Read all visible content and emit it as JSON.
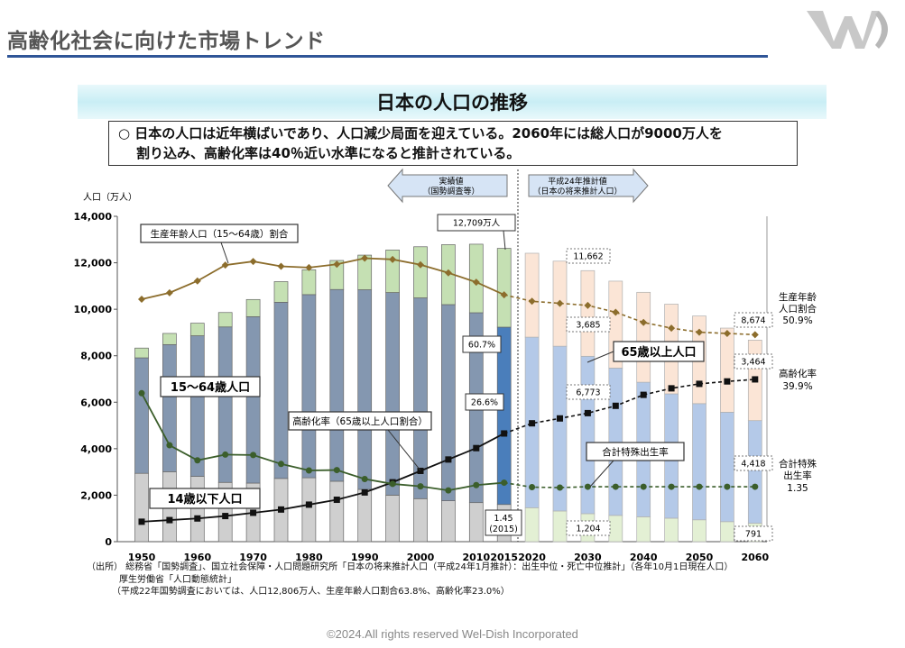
{
  "header": {
    "title": "高齢化社会に向けた市場トレンド"
  },
  "slide": {
    "title": "日本の人口の推移",
    "summary_line1": "○ 日本の人口は近年横ばいであり、人口減少局面を迎えている。2060年には総人口が9000万人を",
    "summary_line2": "割り込み、高齢化率は40％近い水準になると推計されている。"
  },
  "chart_data": {
    "type": "bar",
    "y_axis_title": "人口（万人）",
    "ylim": [
      0,
      14000
    ],
    "y_ticks": [
      "0",
      "2,000",
      "4,000",
      "6,000",
      "8,000",
      "10,000",
      "12,000",
      "14,000"
    ],
    "x_tick_labels": [
      "1950",
      "1960",
      "1970",
      "1980",
      "1990",
      "2000",
      "2010",
      "2015",
      "2020",
      "2030",
      "2040",
      "2050",
      "2060"
    ],
    "periods": {
      "actual_label_1": "実績値",
      "actual_label_2": "（国勢調査等）",
      "projected_label_1": "平成24年推計値",
      "projected_label_2": "（日本の将来推計人口）"
    },
    "years": [
      1950,
      1955,
      1960,
      1965,
      1970,
      1975,
      1980,
      1985,
      1990,
      1995,
      2000,
      2005,
      2010,
      2015,
      2020,
      2025,
      2030,
      2035,
      2040,
      2045,
      2050,
      2055,
      2060
    ],
    "projected_from": 2020,
    "highlight_year": 2015,
    "series": [
      {
        "name": "14歳以下人口",
        "values": [
          2940,
          3010,
          2810,
          2550,
          2520,
          2720,
          2750,
          2600,
          2250,
          2000,
          1850,
          1760,
          1680,
          1600,
          1460,
          1320,
          1204,
          1130,
          1070,
          1010,
          940,
          860,
          791
        ]
      },
      {
        "name": "15〜64歳人口",
        "values": [
          4970,
          5470,
          6050,
          6690,
          7160,
          7580,
          7880,
          8250,
          8590,
          8720,
          8640,
          8440,
          8170,
          7630,
          7340,
          7090,
          6773,
          6340,
          5790,
          5350,
          5000,
          4710,
          4418
        ]
      },
      {
        "name": "65歳以上人口",
        "values": [
          420,
          480,
          540,
          620,
          740,
          890,
          1070,
          1250,
          1490,
          1830,
          2200,
          2580,
          2950,
          3390,
          3610,
          3660,
          3685,
          3740,
          3870,
          3860,
          3770,
          3620,
          3464
        ]
      },
      {
        "name": "生産年齢人口（15〜64歳）割合",
        "unit": "%",
        "values": [
          59.6,
          61.2,
          64.1,
          68.0,
          68.9,
          67.7,
          67.4,
          68.2,
          69.7,
          69.4,
          68.1,
          66.1,
          63.8,
          60.7,
          59.1,
          58.6,
          58.1,
          56.4,
          53.9,
          52.5,
          51.5,
          51.2,
          50.9
        ]
      },
      {
        "name": "高齢化率（65歳以上人口割合）",
        "unit": "%",
        "values": [
          4.9,
          5.3,
          5.7,
          6.3,
          7.1,
          7.9,
          9.1,
          10.3,
          12.1,
          14.6,
          17.4,
          20.2,
          23.0,
          26.6,
          29.1,
          30.3,
          31.6,
          33.4,
          36.1,
          37.7,
          38.8,
          39.4,
          39.9
        ]
      },
      {
        "name": "合計特殊出生率",
        "values": [
          3.65,
          2.37,
          2.0,
          2.14,
          2.13,
          1.91,
          1.75,
          1.76,
          1.54,
          1.42,
          1.36,
          1.26,
          1.39,
          1.45,
          1.34,
          1.33,
          1.35,
          1.35,
          1.35,
          1.35,
          1.35,
          1.35,
          1.35
        ]
      }
    ],
    "annotations": {
      "total_2015": "12,709万人",
      "total_2030": "11,662",
      "total_2060": "8,674",
      "elderly_2030": "3,685",
      "elderly_2060": "3,464",
      "working_2030": "6,773",
      "working_2060": "4,418",
      "child_2030": "1,204",
      "child_2060": "791",
      "working_ratio_2015": "60.7%",
      "aging_rate_2015": "26.6%",
      "tfr_2015_1": "1.45",
      "tfr_2015_2": "(2015)"
    },
    "callouts": {
      "working_ratio": "生産年齢人口（15〜64歳）割合",
      "working_pop": "15〜64歳人口",
      "elderly_pop": "65歳以上人口",
      "aging_rate": "高齢化率（65歳以上人口割合）",
      "tfr": "合計特殊出生率",
      "child_pop": "14歳以下人口"
    },
    "right_labels": {
      "working_ratio_1": "生産年齢",
      "working_ratio_2": "人口割合",
      "working_ratio_3": "50.9%",
      "aging_1": "高齢化率",
      "aging_2": "39.9%",
      "tfr_1": "合計特殊",
      "tfr_2": "出生率",
      "tfr_3": "1.35"
    },
    "colors": {
      "child_actual": "#cfcfcf",
      "child_proj": "#e3f0d4",
      "working_actual": "#8497b0",
      "working_proj": "#b4c9e8",
      "elderly_actual": "#c5e0b3",
      "elderly_proj": "#fbe5d6",
      "working_2015": "#4a7ebb",
      "elderly_2015": "#c5e0b3",
      "line_ratio": "#8c6d2c",
      "line_aging": "#111111",
      "line_tfr": "#3b5e2b"
    }
  },
  "footnote": {
    "line1": "（出所） 総務省「国勢調査」、国立社会保障・人口問題研究所「日本の将来推計人口（平成24年1月推計）：出生中位・死亡中位推計」（各年10月1日現在人口）",
    "line2": "厚生労働省「人口動態統計」",
    "line3": "（平成22年国勢調査においては、人口12,806万人、生産年齢人口割合63.8%、高齢化率23.0%）"
  },
  "copyright": "©2024.All rights reserved Wel-Dish Incorporated"
}
